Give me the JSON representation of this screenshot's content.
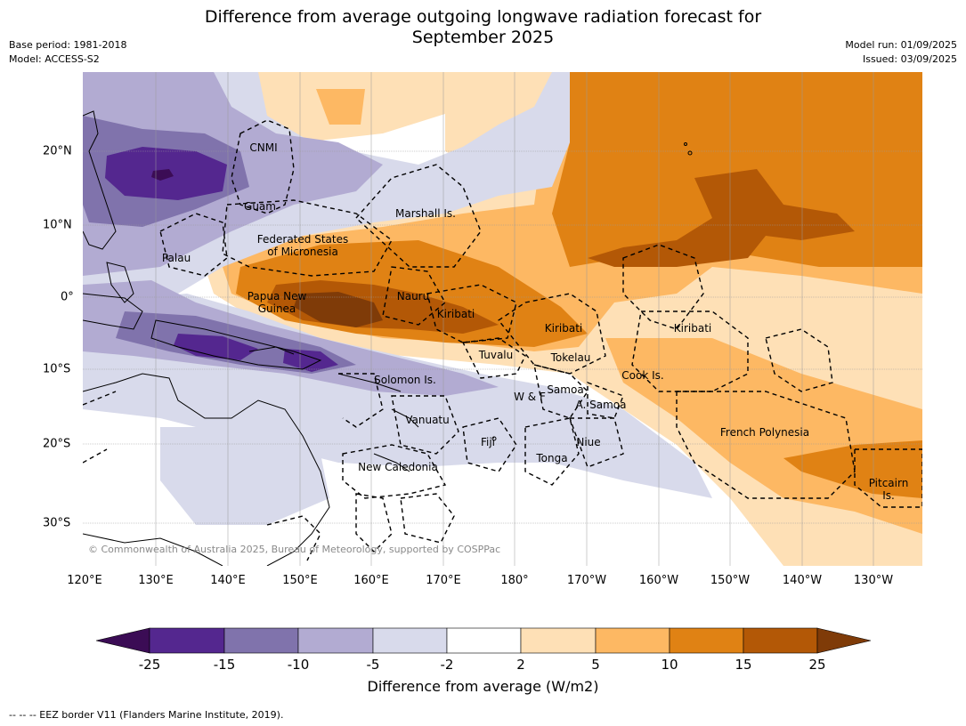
{
  "title_line1": "Difference from average outgoing longwave radiation forecast for",
  "title_line2": "September 2025",
  "meta_left": [
    "Base period: 1981-2018",
    "Model: ACCESS-S2"
  ],
  "meta_right": [
    "Model run: 01/09/2025",
    "Issued: 03/09/2025"
  ],
  "lon_labels": [
    "120°E",
    "130°E",
    "140°E",
    "150°E",
    "160°E",
    "170°E",
    "180°",
    "170°W",
    "160°W",
    "150°W",
    "140°W",
    "130°W"
  ],
  "lat_labels": [
    "20°N",
    "10°N",
    "0°",
    "10°S",
    "20°S",
    "30°S"
  ],
  "places": [
    "CNMI",
    "Guam",
    "Marshall Is.",
    "Federated States",
    "of Micronesia",
    "Palau",
    "Papua New",
    "Guinea",
    "Nauru",
    "Kiribati",
    "Kiribati",
    "Kiribati",
    "Tuvalu",
    "Tokelau",
    "Solomon Is.",
    "Samoa",
    "W & F",
    "A. Samoa",
    "Cook Is.",
    "Vanuatu",
    "Fiji",
    "Niue",
    "Tonga",
    "New Caledonia",
    "French Polynesia",
    "Pitcairn",
    "Is."
  ],
  "copyright": "© Commonwealth of Australia 2025, Bureau of Meteorology, supported by COSPPac",
  "colorbar": {
    "ticks": [
      "-25",
      "-15",
      "-10",
      "-5",
      "-2",
      "2",
      "5",
      "10",
      "15",
      "25"
    ],
    "label": "Difference from average (W/m2)",
    "colors": {
      "below_-25": "#3b0c55",
      "-25_-15": "#54278f",
      "-15_-10": "#8073ac",
      "-10_-5": "#b2abd2",
      "-5_-2": "#d8daeb",
      "-2_2": "#ffffff",
      "2_5": "#fee0b6",
      "5_10": "#fdb863",
      "10_15": "#e08214",
      "15_25": "#b35806",
      "above_25": "#7f3b08"
    }
  },
  "footnote": "--  --  -- EEZ border V11 (Flanders Marine Institute, 2019)."
}
